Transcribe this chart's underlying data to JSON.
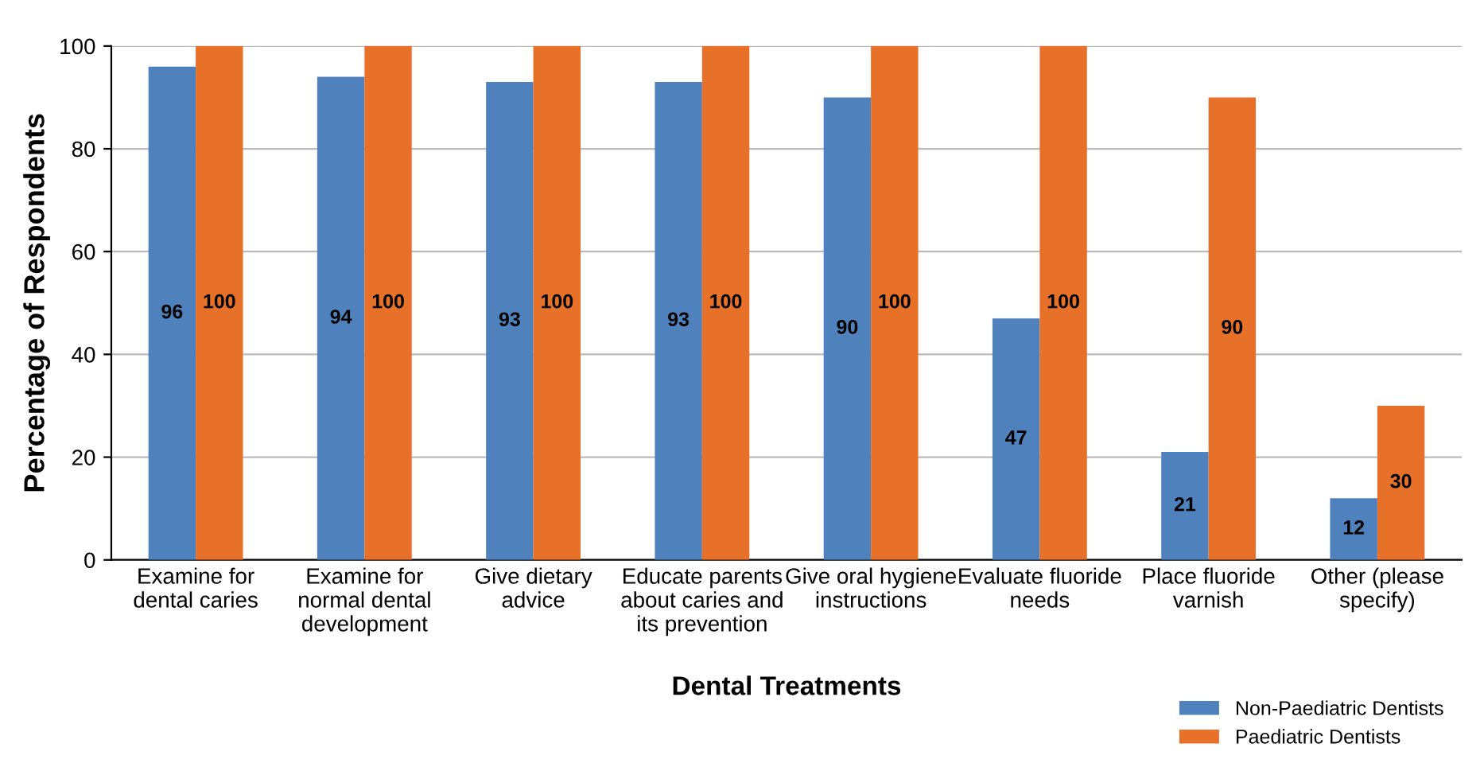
{
  "chart_data": {
    "type": "bar",
    "categories": [
      "Examine for\ndental caries",
      "Examine for\nnormal dental\ndevelopment",
      "Give dietary\nadvice",
      "Educate parents\nabout caries and\nits prevention",
      "Give oral hygiene\ninstructions",
      "Evaluate fluoride\nneeds",
      "Place fluoride\nvarnish",
      "Other (please\nspecify)"
    ],
    "series": [
      {
        "name": "Non-Paediatric Dentists",
        "color": "#4f81bd",
        "values": [
          96,
          94,
          93,
          93,
          90,
          47,
          21,
          12
        ]
      },
      {
        "name": "Paediatric Dentists",
        "color": "#e8712a",
        "values": [
          100,
          100,
          100,
          100,
          100,
          100,
          90,
          30
        ]
      }
    ],
    "xlabel": "Dental Treatments",
    "ylabel": "Percentage of Respondents",
    "ylim": [
      0,
      100
    ],
    "yticks": [
      0,
      20,
      40,
      60,
      80,
      100
    ],
    "grid": "y",
    "legend": "bottom right",
    "data_labels": true
  }
}
